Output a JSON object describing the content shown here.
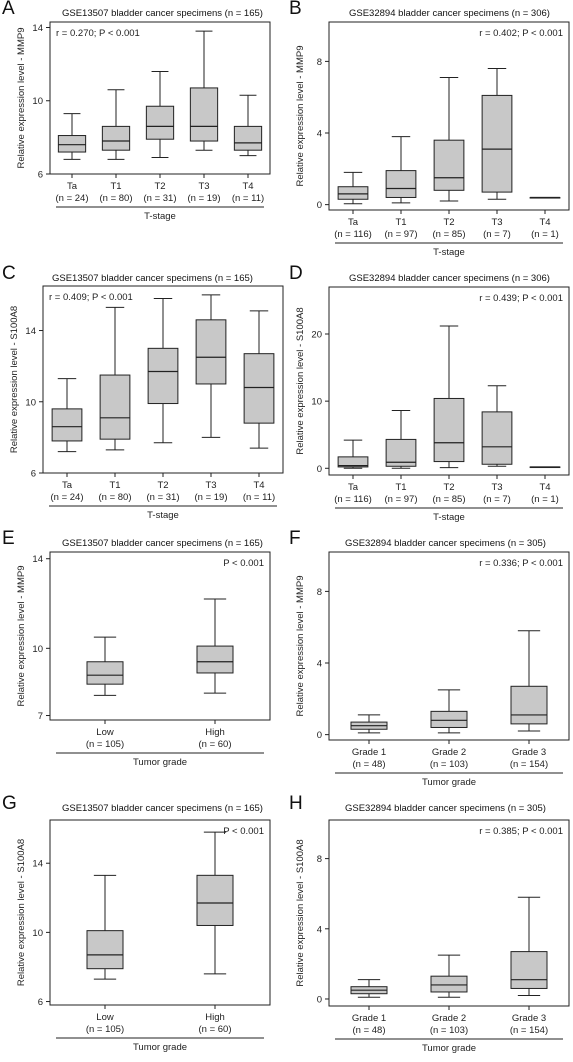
{
  "chart_data": [
    {
      "id": "A",
      "type": "box",
      "title": "GSE13507 bladder cancer specimens (n = 165)",
      "annotation": "r = 0.270; P < 0.001",
      "annotation_position": "top-left",
      "ylabel": "Relative expression level - MMP9",
      "xlabel": "T-stage",
      "ylim": [
        6,
        14.3
      ],
      "yticks": [
        6,
        10,
        14
      ],
      "categories": [
        "Ta",
        "T1",
        "T2",
        "T3",
        "T4"
      ],
      "counts": [
        "(n = 24)",
        "(n = 80)",
        "(n = 31)",
        "(n = 19)",
        "(n = 11)"
      ],
      "boxes": [
        {
          "min": 6.8,
          "q1": 7.2,
          "median": 7.6,
          "q3": 8.1,
          "max": 9.3
        },
        {
          "min": 6.8,
          "q1": 7.3,
          "median": 7.8,
          "q3": 8.6,
          "max": 10.6
        },
        {
          "min": 6.9,
          "q1": 7.9,
          "median": 8.6,
          "q3": 9.7,
          "max": 11.6
        },
        {
          "min": 7.3,
          "q1": 7.8,
          "median": 8.6,
          "q3": 10.7,
          "max": 13.8
        },
        {
          "min": 7.0,
          "q1": 7.3,
          "median": 7.7,
          "q3": 8.6,
          "max": 10.3
        }
      ]
    },
    {
      "id": "B",
      "type": "box",
      "title": "GSE32894 bladder cancer specimens (n = 306)",
      "annotation": "r = 0.402; P < 0.001",
      "annotation_position": "top-right",
      "ylabel": "Relative expression level - MMP9",
      "xlabel": "T-stage",
      "ylim": [
        -0.3,
        10.2
      ],
      "yticks": [
        0,
        4,
        8
      ],
      "categories": [
        "Ta",
        "T1",
        "T2",
        "T3",
        "T4"
      ],
      "counts": [
        "(n = 116)",
        "(n = 97)",
        "(n = 85)",
        "(n = 7)",
        "(n = 1)"
      ],
      "boxes": [
        {
          "min": 0.05,
          "q1": 0.3,
          "median": 0.6,
          "q3": 1.0,
          "max": 1.8
        },
        {
          "min": 0.1,
          "q1": 0.4,
          "median": 0.9,
          "q3": 1.9,
          "max": 3.8
        },
        {
          "min": 0.2,
          "q1": 0.8,
          "median": 1.5,
          "q3": 3.6,
          "max": 7.1
        },
        {
          "min": 0.3,
          "q1": 0.7,
          "median": 3.1,
          "q3": 6.1,
          "max": 7.6
        },
        {
          "min": 0.4,
          "q1": 0.4,
          "median": 0.4,
          "q3": 0.4,
          "max": 0.4
        }
      ]
    },
    {
      "id": "C",
      "type": "box",
      "title": "GSE13507 bladder cancer specimens (n = 165)",
      "annotation": "r = 0.409; P < 0.001",
      "annotation_position": "top-left",
      "ylabel": "Relative expression level - S100A8",
      "xlabel": "T-stage",
      "ylim": [
        6,
        16.5
      ],
      "yticks": [
        6,
        10,
        14
      ],
      "categories": [
        "Ta",
        "T1",
        "T2",
        "T3",
        "T4"
      ],
      "counts": [
        "(n = 24)",
        "(n = 80)",
        "(n = 31)",
        "(n = 19)",
        "(n = 11)"
      ],
      "boxes": [
        {
          "min": 7.2,
          "q1": 7.8,
          "median": 8.6,
          "q3": 9.6,
          "max": 11.3
        },
        {
          "min": 7.3,
          "q1": 7.9,
          "median": 9.1,
          "q3": 11.5,
          "max": 15.3
        },
        {
          "min": 7.7,
          "q1": 9.9,
          "median": 11.7,
          "q3": 13.0,
          "max": 15.8
        },
        {
          "min": 8.0,
          "q1": 11.0,
          "median": 12.5,
          "q3": 14.6,
          "max": 16.0
        },
        {
          "min": 7.4,
          "q1": 8.8,
          "median": 10.8,
          "q3": 12.7,
          "max": 15.1
        }
      ]
    },
    {
      "id": "D",
      "type": "box",
      "title": "GSE32894 bladder cancer specimens (n = 306)",
      "annotation": "r = 0.439; P < 0.001",
      "annotation_position": "top-right",
      "ylabel": "Relative expression level - S100A8",
      "xlabel": "T-stage",
      "ylim": [
        -1,
        27
      ],
      "yticks": [
        0,
        10,
        20
      ],
      "categories": [
        "Ta",
        "T1",
        "T2",
        "T3",
        "T4"
      ],
      "counts": [
        "(n = 116)",
        "(n = 97)",
        "(n = 85)",
        "(n = 7)",
        "(n = 1)"
      ],
      "boxes": [
        {
          "min": 0.0,
          "q1": 0.2,
          "median": 0.4,
          "q3": 1.7,
          "max": 4.2
        },
        {
          "min": 0.0,
          "q1": 0.3,
          "median": 0.9,
          "q3": 4.3,
          "max": 8.6
        },
        {
          "min": 0.1,
          "q1": 1.0,
          "median": 3.8,
          "q3": 10.4,
          "max": 21.2
        },
        {
          "min": 0.3,
          "q1": 0.6,
          "median": 3.2,
          "q3": 8.4,
          "max": 12.3
        },
        {
          "min": 0.2,
          "q1": 0.2,
          "median": 0.2,
          "q3": 0.2,
          "max": 0.2
        }
      ]
    },
    {
      "id": "E",
      "type": "box",
      "title": "GSE13507 bladder cancer specimens (n = 165)",
      "annotation": "P < 0.001",
      "annotation_position": "top-right",
      "ylabel": "Relative expression level - MMP9",
      "xlabel": "Tumor grade",
      "ylim": [
        6.8,
        14.3
      ],
      "yticks": [
        7,
        10,
        14
      ],
      "categories": [
        "Low",
        "High"
      ],
      "counts": [
        "(n = 105)",
        "(n = 60)"
      ],
      "boxes": [
        {
          "min": 7.9,
          "q1": 8.4,
          "median": 8.8,
          "q3": 9.4,
          "max": 10.5
        },
        {
          "min": 8.0,
          "q1": 8.9,
          "median": 9.4,
          "q3": 10.1,
          "max": 12.2
        }
      ]
    },
    {
      "id": "F",
      "type": "box",
      "title": "GSE32894 bladder cancer specimens (n = 305)",
      "annotation": "r = 0.336; P < 0.001",
      "annotation_position": "top-right",
      "ylabel": "Relative expression level - MMP9",
      "xlabel": "Tumor grade",
      "ylim": [
        -0.3,
        10.2
      ],
      "yticks": [
        0,
        4,
        8
      ],
      "categories": [
        "Grade 1",
        "Grade 2",
        "Grade 3"
      ],
      "counts": [
        "(n = 48)",
        "(n = 103)",
        "(n = 154)"
      ],
      "boxes": [
        {
          "min": 0.1,
          "q1": 0.3,
          "median": 0.5,
          "q3": 0.7,
          "max": 1.1
        },
        {
          "min": 0.1,
          "q1": 0.4,
          "median": 0.8,
          "q3": 1.3,
          "max": 2.5
        },
        {
          "min": 0.2,
          "q1": 0.6,
          "median": 1.1,
          "q3": 2.7,
          "max": 5.8
        }
      ]
    },
    {
      "id": "G",
      "type": "box",
      "title": "GSE13507 bladder cancer specimens (n = 165)",
      "annotation": "P < 0.001",
      "annotation_position": "top-right",
      "ylabel": "Relative expression level - S100A8",
      "xlabel": "Tumor grade",
      "ylim": [
        5.8,
        16.5
      ],
      "yticks": [
        6,
        10,
        14
      ],
      "categories": [
        "Low",
        "High"
      ],
      "counts": [
        "(n = 105)",
        "(n = 60)"
      ],
      "boxes": [
        {
          "min": 7.3,
          "q1": 7.9,
          "median": 8.7,
          "q3": 10.1,
          "max": 13.3
        },
        {
          "min": 7.6,
          "q1": 10.4,
          "median": 11.7,
          "q3": 13.3,
          "max": 15.8
        }
      ]
    },
    {
      "id": "H",
      "type": "box",
      "title": "GSE32894 bladder cancer specimens (n = 305)",
      "annotation": "r = 0.385; P < 0.001",
      "annotation_position": "top-right",
      "ylabel": "Relative expression level - S100A8",
      "xlabel": "Tumor grade",
      "ylim": [
        -0.4,
        10.2
      ],
      "yticks": [
        0,
        4,
        8
      ],
      "categories": [
        "Grade 1",
        "Grade 2",
        "Grade 3"
      ],
      "counts": [
        "(n = 48)",
        "(n = 103)",
        "(n = 154)"
      ],
      "boxes": [
        {
          "min": 0.1,
          "q1": 0.3,
          "median": 0.5,
          "q3": 0.7,
          "max": 1.1
        },
        {
          "min": 0.1,
          "q1": 0.4,
          "median": 0.8,
          "q3": 1.3,
          "max": 2.5
        },
        {
          "min": 0.2,
          "q1": 0.6,
          "median": 1.1,
          "q3": 2.7,
          "max": 5.8
        }
      ]
    }
  ],
  "style": {
    "box_fill": "#c8c8c8",
    "line_color": "#222222"
  }
}
